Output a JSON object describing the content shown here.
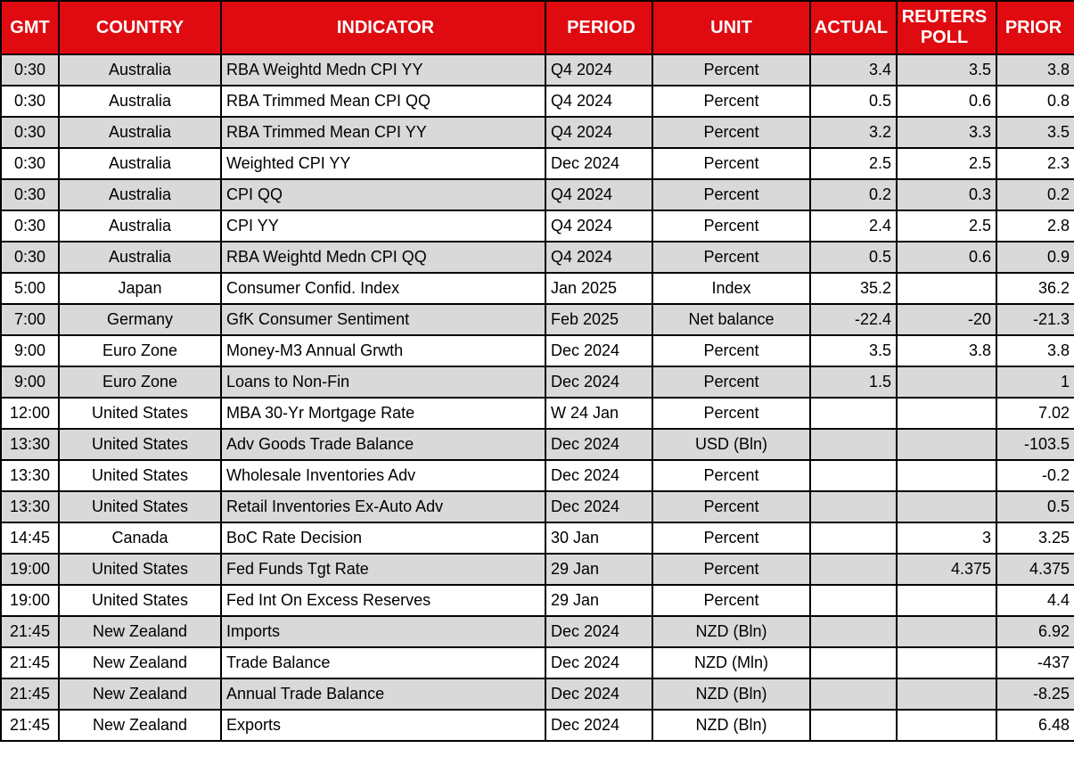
{
  "colors": {
    "header_bg": "#df0b10",
    "header_fg": "#ffffff",
    "row_gray": "#d9d9d9",
    "row_white": "#ffffff",
    "grid": "#000000",
    "text": "#000000"
  },
  "chart_data": {
    "type": "table",
    "columns": [
      {
        "key": "gmt",
        "label": "GMT"
      },
      {
        "key": "country",
        "label": "COUNTRY"
      },
      {
        "key": "indicator",
        "label": "INDICATOR"
      },
      {
        "key": "period",
        "label": "PERIOD"
      },
      {
        "key": "unit",
        "label": "UNIT"
      },
      {
        "key": "actual",
        "label": "ACTUAL"
      },
      {
        "key": "poll",
        "label": "REUTERS POLL"
      },
      {
        "key": "prior",
        "label": "PRIOR"
      }
    ],
    "rows": [
      {
        "gmt": "0:30",
        "country": "Australia",
        "indicator": "RBA Weightd Medn CPI YY",
        "period": "Q4 2024",
        "unit": "Percent",
        "actual": "3.4",
        "poll": "3.5",
        "prior": "3.8"
      },
      {
        "gmt": "0:30",
        "country": "Australia",
        "indicator": "RBA Trimmed Mean CPI QQ",
        "period": "Q4 2024",
        "unit": "Percent",
        "actual": "0.5",
        "poll": "0.6",
        "prior": "0.8"
      },
      {
        "gmt": "0:30",
        "country": "Australia",
        "indicator": "RBA Trimmed Mean CPI YY",
        "period": "Q4 2024",
        "unit": "Percent",
        "actual": "3.2",
        "poll": "3.3",
        "prior": "3.5"
      },
      {
        "gmt": "0:30",
        "country": "Australia",
        "indicator": "Weighted CPI YY",
        "period": "Dec 2024",
        "unit": "Percent",
        "actual": "2.5",
        "poll": "2.5",
        "prior": "2.3"
      },
      {
        "gmt": "0:30",
        "country": "Australia",
        "indicator": "CPI QQ",
        "period": "Q4 2024",
        "unit": "Percent",
        "actual": "0.2",
        "poll": "0.3",
        "prior": "0.2"
      },
      {
        "gmt": "0:30",
        "country": "Australia",
        "indicator": "CPI YY",
        "period": "Q4 2024",
        "unit": "Percent",
        "actual": "2.4",
        "poll": "2.5",
        "prior": "2.8"
      },
      {
        "gmt": "0:30",
        "country": "Australia",
        "indicator": "RBA Weightd Medn CPI QQ",
        "period": "Q4 2024",
        "unit": "Percent",
        "actual": "0.5",
        "poll": "0.6",
        "prior": "0.9"
      },
      {
        "gmt": "5:00",
        "country": "Japan",
        "indicator": "Consumer Confid. Index",
        "period": "Jan 2025",
        "unit": "Index",
        "actual": "35.2",
        "poll": "",
        "prior": "36.2"
      },
      {
        "gmt": "7:00",
        "country": "Germany",
        "indicator": "GfK Consumer Sentiment",
        "period": "Feb 2025",
        "unit": "Net balance",
        "actual": "-22.4",
        "poll": "-20",
        "prior": "-21.3"
      },
      {
        "gmt": "9:00",
        "country": "Euro Zone",
        "indicator": "Money-M3 Annual Grwth",
        "period": "Dec 2024",
        "unit": "Percent",
        "actual": "3.5",
        "poll": "3.8",
        "prior": "3.8"
      },
      {
        "gmt": "9:00",
        "country": "Euro Zone",
        "indicator": "Loans to Non-Fin",
        "period": "Dec 2024",
        "unit": "Percent",
        "actual": "1.5",
        "poll": "",
        "prior": "1"
      },
      {
        "gmt": "12:00",
        "country": "United States",
        "indicator": "MBA 30-Yr Mortgage Rate",
        "period": "W 24 Jan",
        "unit": "Percent",
        "actual": "",
        "poll": "",
        "prior": "7.02"
      },
      {
        "gmt": "13:30",
        "country": "United States",
        "indicator": "Adv Goods Trade Balance",
        "period": "Dec 2024",
        "unit": "USD (Bln)",
        "actual": "",
        "poll": "",
        "prior": "-103.5"
      },
      {
        "gmt": "13:30",
        "country": "United States",
        "indicator": "Wholesale Inventories Adv",
        "period": "Dec 2024",
        "unit": "Percent",
        "actual": "",
        "poll": "",
        "prior": "-0.2"
      },
      {
        "gmt": "13:30",
        "country": "United States",
        "indicator": "Retail Inventories Ex-Auto Adv",
        "period": "Dec 2024",
        "unit": "Percent",
        "actual": "",
        "poll": "",
        "prior": "0.5"
      },
      {
        "gmt": "14:45",
        "country": "Canada",
        "indicator": "BoC Rate Decision",
        "period": "30 Jan",
        "unit": "Percent",
        "actual": "",
        "poll": "3",
        "prior": "3.25"
      },
      {
        "gmt": "19:00",
        "country": "United States",
        "indicator": "Fed Funds Tgt Rate",
        "period": "29 Jan",
        "unit": "Percent",
        "actual": "",
        "poll": "4.375",
        "prior": "4.375"
      },
      {
        "gmt": "19:00",
        "country": "United States",
        "indicator": "Fed Int On Excess Reserves",
        "period": "29 Jan",
        "unit": "Percent",
        "actual": "",
        "poll": "",
        "prior": "4.4"
      },
      {
        "gmt": "21:45",
        "country": "New Zealand",
        "indicator": "Imports",
        "period": "Dec 2024",
        "unit": "NZD (Bln)",
        "actual": "",
        "poll": "",
        "prior": "6.92"
      },
      {
        "gmt": "21:45",
        "country": "New Zealand",
        "indicator": "Trade Balance",
        "period": "Dec 2024",
        "unit": "NZD (Mln)",
        "actual": "",
        "poll": "",
        "prior": "-437"
      },
      {
        "gmt": "21:45",
        "country": "New Zealand",
        "indicator": "Annual Trade Balance",
        "period": "Dec 2024",
        "unit": "NZD (Bln)",
        "actual": "",
        "poll": "",
        "prior": "-8.25"
      },
      {
        "gmt": "21:45",
        "country": "New Zealand",
        "indicator": "Exports",
        "period": "Dec 2024",
        "unit": "NZD (Bln)",
        "actual": "",
        "poll": "",
        "prior": "6.48"
      }
    ]
  }
}
